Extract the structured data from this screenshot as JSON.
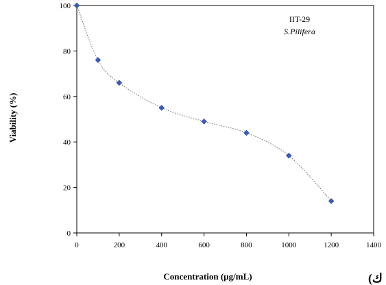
{
  "chart_data": {
    "type": "scatter",
    "xlabel": "Concentration (µg/mL)",
    "ylabel": "Viability (%)",
    "xlim": [
      0,
      1400
    ],
    "ylim": [
      0,
      100
    ],
    "xticks": [
      0,
      200,
      400,
      600,
      800,
      1000,
      1200,
      1400
    ],
    "yticks": [
      0,
      20,
      40,
      60,
      80,
      100
    ],
    "legend_position": "top-right",
    "legend_lines": [
      "IIT-29",
      "S.Pilifera"
    ],
    "grid": false,
    "marker": "diamond",
    "line_style": "dotted",
    "marker_color": "#3b5bb5",
    "line_color": "#666666",
    "series": [
      {
        "x": [
          0,
          100,
          200,
          400,
          600,
          800,
          1000,
          1200
        ],
        "y": [
          100,
          76,
          66,
          55,
          49,
          44,
          34,
          14
        ]
      }
    ]
  },
  "corner_glyph": "(ك"
}
